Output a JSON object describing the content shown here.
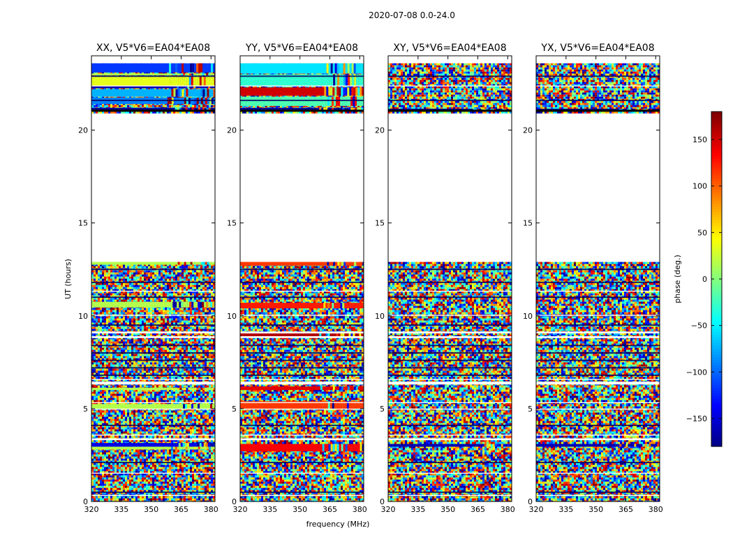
{
  "chart_data": {
    "type": "heatmap",
    "suptitle": "2020-07-08 0.0-24.0",
    "xlabel": "frequency (MHz)",
    "ylabel": "UT (hours)",
    "xlim": [
      320,
      382
    ],
    "ylim": [
      0,
      24
    ],
    "xticks": [
      320,
      335,
      350,
      365,
      380
    ],
    "yticks": [
      0,
      5,
      10,
      15,
      20
    ],
    "panels": [
      {
        "title": "XX, V5*V6=EA04*EA08",
        "style": "xx"
      },
      {
        "title": "YY, V5*V6=EA04*EA08",
        "style": "yy"
      },
      {
        "title": "XY, V5*V6=EA04*EA08",
        "style": "noise"
      },
      {
        "title": "YX, V5*V6=EA04*EA08",
        "style": "noise"
      }
    ],
    "data_coverage_hours": [
      [
        0.0,
        12.9
      ],
      [
        21.0,
        23.6
      ]
    ],
    "colorbar": {
      "label": "phase (deg.)",
      "range": [
        -180,
        180
      ],
      "ticks": [
        150,
        100,
        50,
        0,
        -50,
        -100,
        -150
      ],
      "tick_labels": [
        "150",
        "100",
        "50",
        "0",
        "−50",
        "−100",
        "−150"
      ],
      "colormap": "jet"
    }
  }
}
